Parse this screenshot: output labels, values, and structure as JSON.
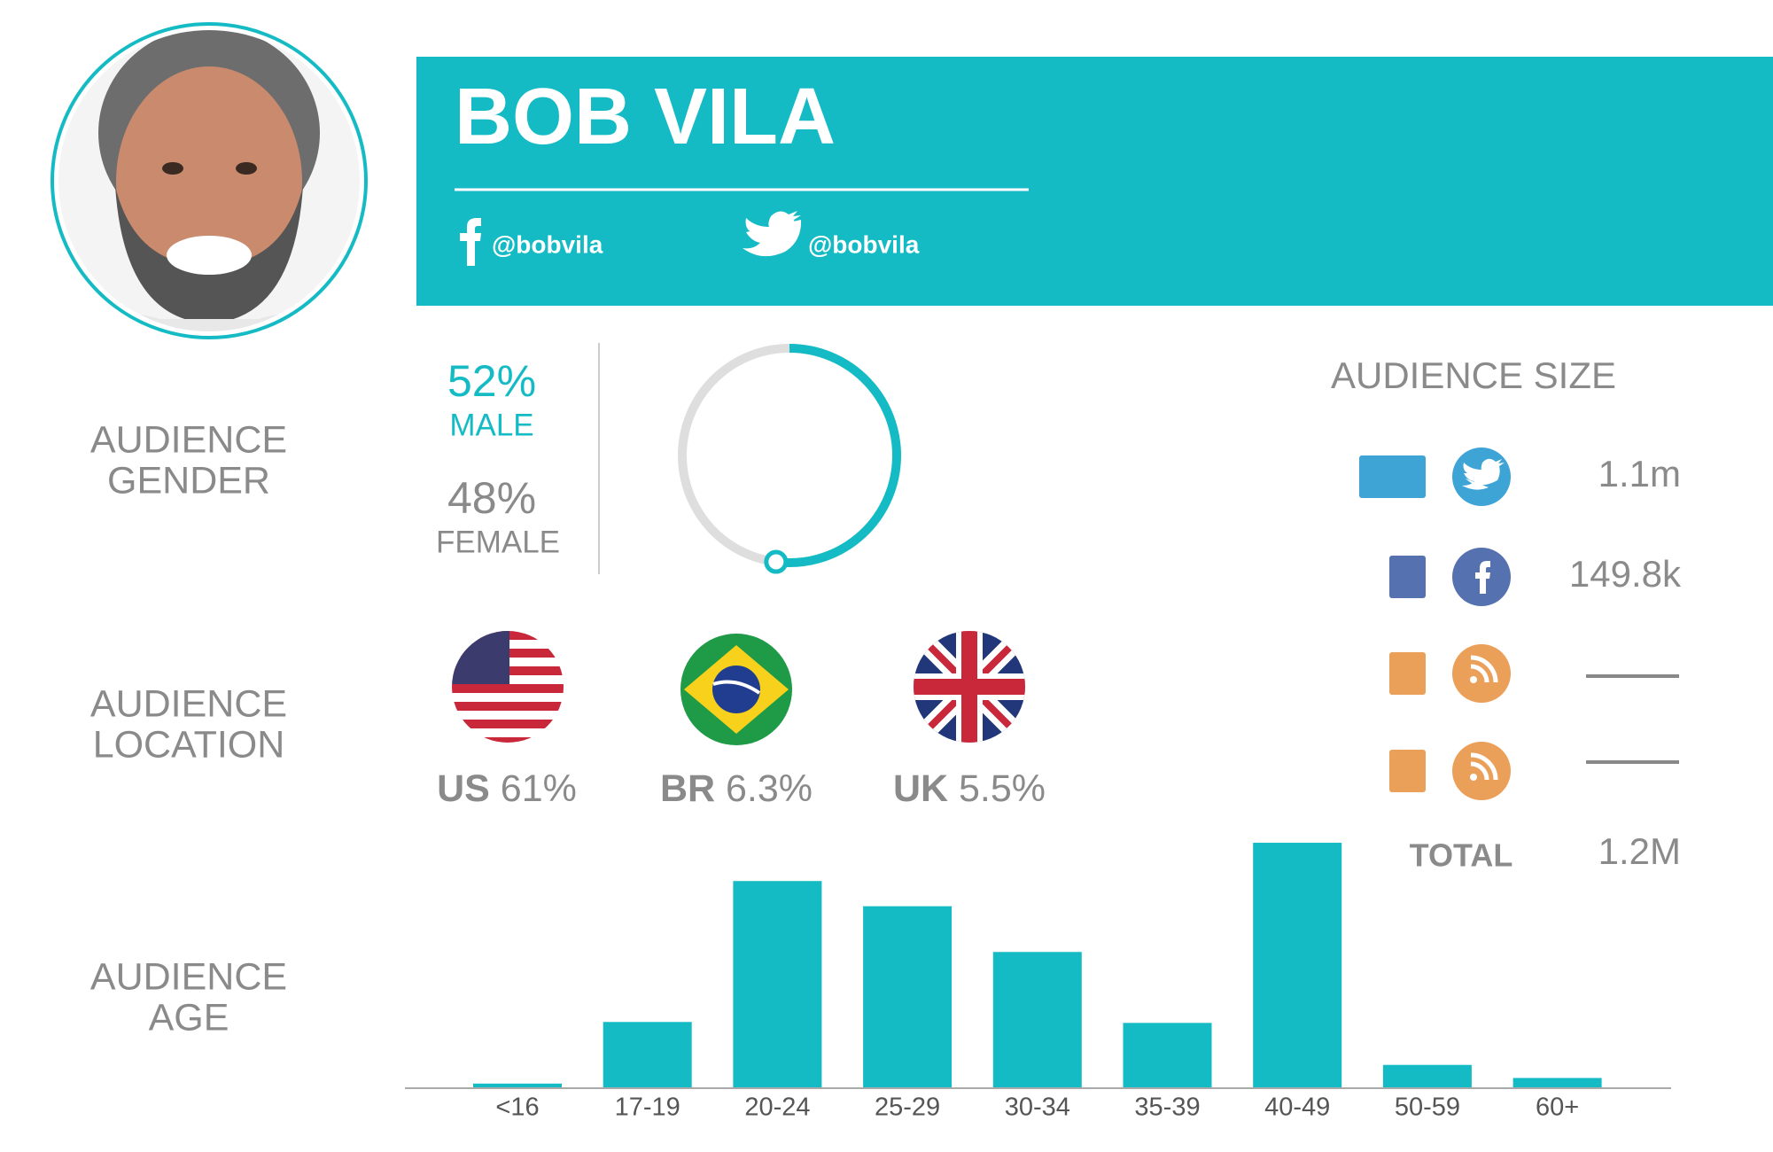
{
  "header": {
    "name": "BOB VILA",
    "facebook": "@bobvila",
    "twitter": "@bobvila"
  },
  "gender": {
    "label": [
      "AUDIENCE",
      "GENDER"
    ],
    "male": {
      "value": 52,
      "value_label": "52%",
      "label": "MALE"
    },
    "female": {
      "value": 48,
      "value_label": "48%",
      "label": "FEMALE"
    }
  },
  "location": {
    "label": [
      "AUDIENCE",
      "LOCATION"
    ],
    "countries": [
      {
        "code": "US",
        "value_label": "61%"
      },
      {
        "code": "BR",
        "value_label": "6.3%"
      },
      {
        "code": "UK",
        "value_label": "5.5%"
      }
    ]
  },
  "audience_size": {
    "title": "AUDIENCE SIZE",
    "rows": [
      "1.1m",
      "149.8k"
    ],
    "total_label": "TOTAL",
    "total": "1.2M"
  },
  "age": {
    "label": [
      "AUDIENCE",
      "AGE"
    ],
    "chart": {
      "type": "bar",
      "categories": [
        "<16",
        "17-19",
        "20-24",
        "25-29",
        "30-34",
        "35-39",
        "40-49",
        "50-59",
        "60+"
      ],
      "values": [
        0.4,
        7.0,
        22.1,
        19.4,
        14.5,
        6.9,
        26.2,
        2.4,
        1.0
      ],
      "color": "#15bbc4",
      "ylim": [
        0,
        30
      ]
    }
  }
}
